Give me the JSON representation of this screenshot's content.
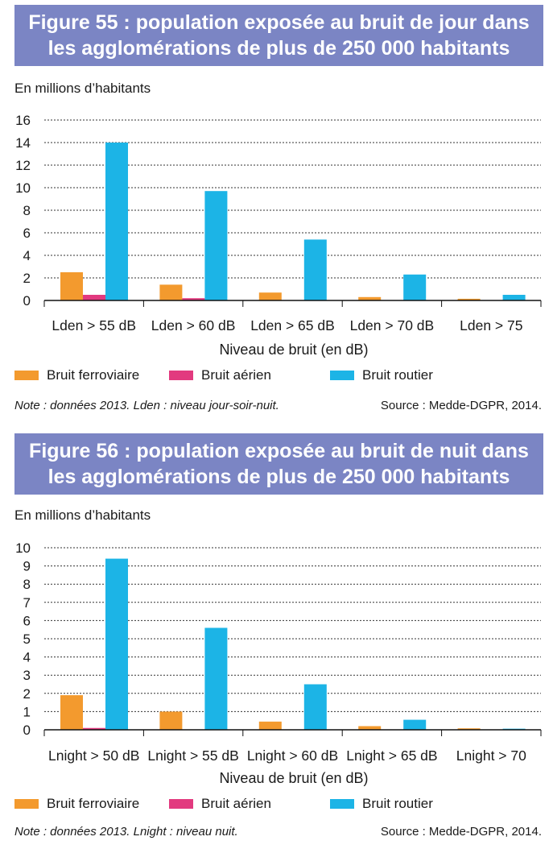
{
  "colors": {
    "title_bg": "#7b85c4",
    "ferroviaire": "#f39a2e",
    "aerien": "#e23a7f",
    "routier": "#1cb4e6",
    "grid": "#333333"
  },
  "figures": [
    {
      "title": "Figure 55 : population exposée au bruit de jour dans les agglomérations de plus de 250 000 habitants",
      "unit_label": "En millions d’habitants",
      "xlabel": "Niveau de bruit (en dB)",
      "legend": [
        "Bruit ferroviaire",
        "Bruit aérien",
        "Bruit routier"
      ],
      "note": "Note : données 2013. Lden : niveau jour-soir-nuit.",
      "source": "Source : Medde-DGPR, 2014."
    },
    {
      "title": "Figure 56 : population exposée au bruit de nuit dans les agglomérations de plus de 250 000 habitants",
      "unit_label": "En millions d’habitants",
      "xlabel": "Niveau de bruit (en dB)",
      "legend": [
        "Bruit ferroviaire",
        "Bruit aérien",
        "Bruit routier"
      ],
      "note": "Note : données 2013. Lnight : niveau nuit.",
      "source": "Source : Medde-DGPR, 2014."
    }
  ],
  "chart_data": [
    {
      "type": "bar",
      "title": "Figure 55 : population exposée au bruit de jour dans les agglomérations de plus de 250 000 habitants",
      "ylabel": "En millions d’habitants",
      "xlabel": "Niveau de bruit (en dB)",
      "ylim": [
        0,
        16
      ],
      "yticks": [
        0,
        2,
        4,
        6,
        8,
        10,
        12,
        14,
        16
      ],
      "grid": true,
      "categories": [
        "Lden > 55 dB",
        "Lden > 60 dB",
        "Lden > 65 dB",
        "Lden > 70 dB",
        "Lden > 75"
      ],
      "series": [
        {
          "name": "Bruit ferroviaire",
          "values": [
            2.5,
            1.4,
            0.7,
            0.3,
            0.15
          ]
        },
        {
          "name": "Bruit aérien",
          "values": [
            0.5,
            0.2,
            0.0,
            0.0,
            0.0
          ]
        },
        {
          "name": "Bruit routier",
          "values": [
            14.0,
            9.7,
            5.4,
            2.3,
            0.5
          ]
        }
      ]
    },
    {
      "type": "bar",
      "title": "Figure 56 : population exposée au bruit de nuit dans les agglomérations de plus de 250 000 habitants",
      "ylabel": "En millions d’habitants",
      "xlabel": "Niveau de bruit (en dB)",
      "ylim": [
        0,
        10
      ],
      "yticks": [
        0,
        1,
        2,
        3,
        4,
        5,
        6,
        7,
        8,
        9,
        10
      ],
      "grid": true,
      "categories": [
        "Lnight > 50 dB",
        "Lnight > 55 dB",
        "Lnight > 60 dB",
        "Lnight > 65 dB",
        "Lnight > 70"
      ],
      "series": [
        {
          "name": "Bruit ferroviaire",
          "values": [
            1.9,
            1.0,
            0.45,
            0.2,
            0.08
          ]
        },
        {
          "name": "Bruit aérien",
          "values": [
            0.1,
            0.0,
            0.0,
            0.0,
            0.0
          ]
        },
        {
          "name": "Bruit routier",
          "values": [
            9.4,
            5.6,
            2.5,
            0.55,
            0.06
          ]
        }
      ]
    }
  ]
}
